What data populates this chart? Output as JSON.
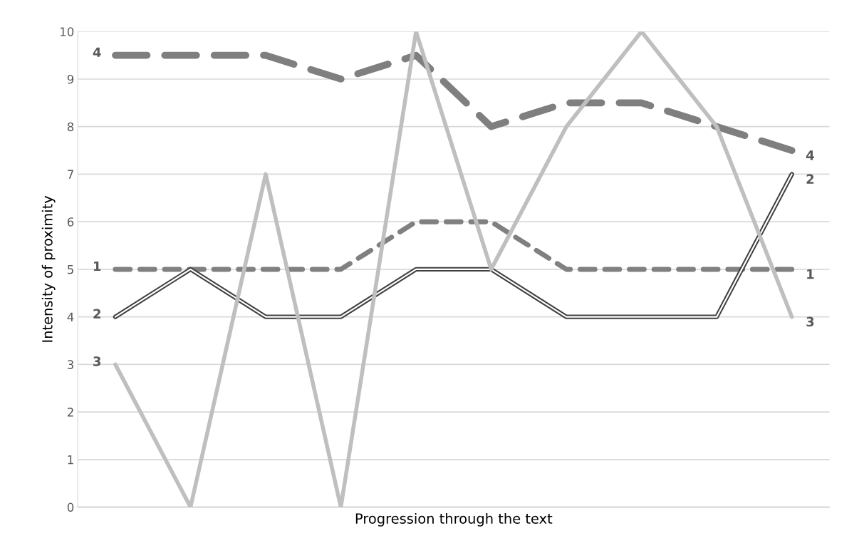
{
  "chart_data": {
    "type": "line",
    "xlabel": "Progression through the text",
    "ylabel": "Intensity of proximity",
    "categories": [
      null,
      null,
      null,
      null,
      null,
      null,
      null,
      null,
      null,
      null
    ],
    "series": [
      {
        "name": "4",
        "color": "#7f7f7f",
        "line_style": "dashed",
        "values": [
          9.5,
          9.5,
          9.5,
          9,
          9.5,
          8,
          8.5,
          8.5,
          8,
          7.5
        ]
      },
      {
        "name": "1",
        "color": "#808080",
        "line_style": "dashed",
        "values": [
          5,
          5,
          5,
          5,
          6,
          6,
          5,
          5,
          5,
          5
        ]
      },
      {
        "name": "2",
        "color": "#404040",
        "line_style": "solid",
        "values": [
          4,
          5,
          4,
          4,
          5,
          5,
          4,
          4,
          4,
          7
        ]
      },
      {
        "name": "3",
        "color": "#bfbfbf",
        "line_style": "solid",
        "values": [
          3,
          0,
          7,
          0,
          10,
          5,
          8,
          10,
          8,
          4
        ]
      }
    ],
    "ylim": [
      0,
      10
    ],
    "yticks": [
      0,
      1,
      2,
      3,
      4,
      5,
      6,
      7,
      8,
      9,
      10
    ],
    "grid": "y",
    "legend": false,
    "tick_labels": "y",
    "marker": "none"
  }
}
